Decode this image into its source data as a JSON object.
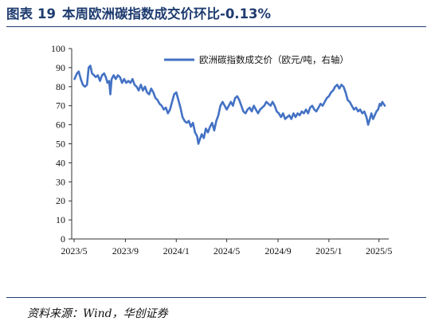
{
  "figure": {
    "label": "图表",
    "number": "19",
    "title": "本周欧洲碳指数成交价环比-0.13%"
  },
  "source": "资料来源：Wind，华创证券",
  "colors": {
    "line": "#4472c4",
    "title": "#1f3c70"
  },
  "chart_data": {
    "type": "line",
    "title": "本周欧洲碳指数成交价环比-0.13%",
    "xlabel": "",
    "ylabel": "",
    "ylim": [
      0,
      100
    ],
    "yticks": [
      0,
      10,
      20,
      30,
      40,
      50,
      60,
      70,
      80,
      90,
      100
    ],
    "xlim": [
      "2023-05-01",
      "2025-05-15"
    ],
    "xticks": [
      {
        "label": "2023/5",
        "date": "2023-05-01"
      },
      {
        "label": "2023/9",
        "date": "2023-09-01"
      },
      {
        "label": "2024/1",
        "date": "2024-01-01"
      },
      {
        "label": "2024/5",
        "date": "2024-05-01"
      },
      {
        "label": "2024/9",
        "date": "2024-09-01"
      },
      {
        "label": "2025/1",
        "date": "2025-01-01"
      },
      {
        "label": "2025/5",
        "date": "2025-05-01"
      }
    ],
    "grid": false,
    "legend_position": "top-right",
    "series": [
      {
        "name": "欧洲碳指数成交价（欧元/吨，右轴）",
        "points": [
          [
            "2023-05-02",
            84
          ],
          [
            "2023-05-08",
            87
          ],
          [
            "2023-05-12",
            88
          ],
          [
            "2023-05-17",
            84
          ],
          [
            "2023-05-22",
            81
          ],
          [
            "2023-05-27",
            80
          ],
          [
            "2023-06-01",
            81
          ],
          [
            "2023-06-05",
            90
          ],
          [
            "2023-06-09",
            91
          ],
          [
            "2023-06-13",
            87
          ],
          [
            "2023-06-18",
            86
          ],
          [
            "2023-06-22",
            85
          ],
          [
            "2023-06-27",
            86
          ],
          [
            "2023-07-02",
            83
          ],
          [
            "2023-07-07",
            86
          ],
          [
            "2023-07-12",
            87
          ],
          [
            "2023-07-16",
            85
          ],
          [
            "2023-07-20",
            82
          ],
          [
            "2023-07-24",
            83
          ],
          [
            "2023-07-27",
            76
          ],
          [
            "2023-07-30",
            84
          ],
          [
            "2023-08-04",
            86
          ],
          [
            "2023-08-09",
            84
          ],
          [
            "2023-08-14",
            86
          ],
          [
            "2023-08-19",
            85
          ],
          [
            "2023-08-24",
            82
          ],
          [
            "2023-08-29",
            84
          ],
          [
            "2023-09-03",
            82
          ],
          [
            "2023-09-08",
            83
          ],
          [
            "2023-09-13",
            82
          ],
          [
            "2023-09-18",
            84
          ],
          [
            "2023-09-23",
            81
          ],
          [
            "2023-09-28",
            80
          ],
          [
            "2023-10-03",
            78
          ],
          [
            "2023-10-08",
            81
          ],
          [
            "2023-10-13",
            78
          ],
          [
            "2023-10-18",
            80
          ],
          [
            "2023-10-23",
            77
          ],
          [
            "2023-10-28",
            76
          ],
          [
            "2023-11-02",
            79
          ],
          [
            "2023-11-07",
            77
          ],
          [
            "2023-11-12",
            74
          ],
          [
            "2023-11-17",
            73
          ],
          [
            "2023-11-22",
            71
          ],
          [
            "2023-11-27",
            70
          ],
          [
            "2023-12-02",
            68
          ],
          [
            "2023-12-07",
            69
          ],
          [
            "2023-12-12",
            66
          ],
          [
            "2023-12-17",
            68
          ],
          [
            "2023-12-22",
            72
          ],
          [
            "2023-12-27",
            76
          ],
          [
            "2024-01-01",
            77
          ],
          [
            "2024-01-06",
            73
          ],
          [
            "2024-01-11",
            69
          ],
          [
            "2024-01-16",
            64
          ],
          [
            "2024-01-21",
            62
          ],
          [
            "2024-01-26",
            61
          ],
          [
            "2024-01-31",
            62
          ],
          [
            "2024-02-05",
            59
          ],
          [
            "2024-02-10",
            61
          ],
          [
            "2024-02-15",
            56
          ],
          [
            "2024-02-20",
            54
          ],
          [
            "2024-02-23",
            50
          ],
          [
            "2024-02-26",
            52
          ],
          [
            "2024-03-02",
            55
          ],
          [
            "2024-03-07",
            53
          ],
          [
            "2024-03-12",
            58
          ],
          [
            "2024-03-17",
            56
          ],
          [
            "2024-03-22",
            59
          ],
          [
            "2024-03-27",
            61
          ],
          [
            "2024-04-01",
            57
          ],
          [
            "2024-04-06",
            62
          ],
          [
            "2024-04-11",
            65
          ],
          [
            "2024-04-16",
            70
          ],
          [
            "2024-04-21",
            72
          ],
          [
            "2024-04-26",
            70
          ],
          [
            "2024-05-01",
            68
          ],
          [
            "2024-05-06",
            70
          ],
          [
            "2024-05-11",
            72
          ],
          [
            "2024-05-16",
            70
          ],
          [
            "2024-05-21",
            74
          ],
          [
            "2024-05-26",
            75
          ],
          [
            "2024-05-31",
            73
          ],
          [
            "2024-06-05",
            70
          ],
          [
            "2024-06-10",
            67
          ],
          [
            "2024-06-15",
            66
          ],
          [
            "2024-06-20",
            68
          ],
          [
            "2024-06-25",
            69
          ],
          [
            "2024-06-30",
            67
          ],
          [
            "2024-07-05",
            70
          ],
          [
            "2024-07-10",
            68
          ],
          [
            "2024-07-15",
            66
          ],
          [
            "2024-07-20",
            68
          ],
          [
            "2024-07-25",
            69
          ],
          [
            "2024-07-30",
            70
          ],
          [
            "2024-08-04",
            72
          ],
          [
            "2024-08-09",
            71
          ],
          [
            "2024-08-14",
            70
          ],
          [
            "2024-08-19",
            72
          ],
          [
            "2024-08-24",
            70
          ],
          [
            "2024-08-29",
            67
          ],
          [
            "2024-09-03",
            66
          ],
          [
            "2024-09-08",
            64
          ],
          [
            "2024-09-13",
            66
          ],
          [
            "2024-09-18",
            63
          ],
          [
            "2024-09-23",
            64
          ],
          [
            "2024-09-28",
            65
          ],
          [
            "2024-10-03",
            63
          ],
          [
            "2024-10-08",
            66
          ],
          [
            "2024-10-13",
            64
          ],
          [
            "2024-10-18",
            66
          ],
          [
            "2024-10-23",
            65
          ],
          [
            "2024-10-28",
            67
          ],
          [
            "2024-11-02",
            66
          ],
          [
            "2024-11-07",
            68
          ],
          [
            "2024-11-12",
            66
          ],
          [
            "2024-11-17",
            69
          ],
          [
            "2024-11-22",
            70
          ],
          [
            "2024-11-27",
            68
          ],
          [
            "2024-12-02",
            67
          ],
          [
            "2024-12-07",
            69
          ],
          [
            "2024-12-12",
            71
          ],
          [
            "2024-12-17",
            70
          ],
          [
            "2024-12-22",
            72
          ],
          [
            "2024-12-27",
            74
          ],
          [
            "2025-01-01",
            75
          ],
          [
            "2025-01-06",
            77
          ],
          [
            "2025-01-11",
            78
          ],
          [
            "2025-01-16",
            80
          ],
          [
            "2025-01-21",
            81
          ],
          [
            "2025-01-26",
            79
          ],
          [
            "2025-01-31",
            81
          ],
          [
            "2025-02-05",
            80
          ],
          [
            "2025-02-10",
            77
          ],
          [
            "2025-02-15",
            73
          ],
          [
            "2025-02-20",
            72
          ],
          [
            "2025-02-25",
            70
          ],
          [
            "2025-03-02",
            68
          ],
          [
            "2025-03-07",
            69
          ],
          [
            "2025-03-12",
            67
          ],
          [
            "2025-03-17",
            68
          ],
          [
            "2025-03-22",
            66
          ],
          [
            "2025-03-27",
            67
          ],
          [
            "2025-04-01",
            64
          ],
          [
            "2025-04-05",
            60
          ],
          [
            "2025-04-09",
            63
          ],
          [
            "2025-04-13",
            66
          ],
          [
            "2025-04-17",
            63
          ],
          [
            "2025-04-21",
            65
          ],
          [
            "2025-04-25",
            67
          ],
          [
            "2025-04-29",
            68
          ],
          [
            "2025-05-03",
            71
          ],
          [
            "2025-05-06",
            70
          ],
          [
            "2025-05-09",
            72
          ],
          [
            "2025-05-12",
            71
          ],
          [
            "2025-05-15",
            70
          ]
        ]
      }
    ]
  }
}
